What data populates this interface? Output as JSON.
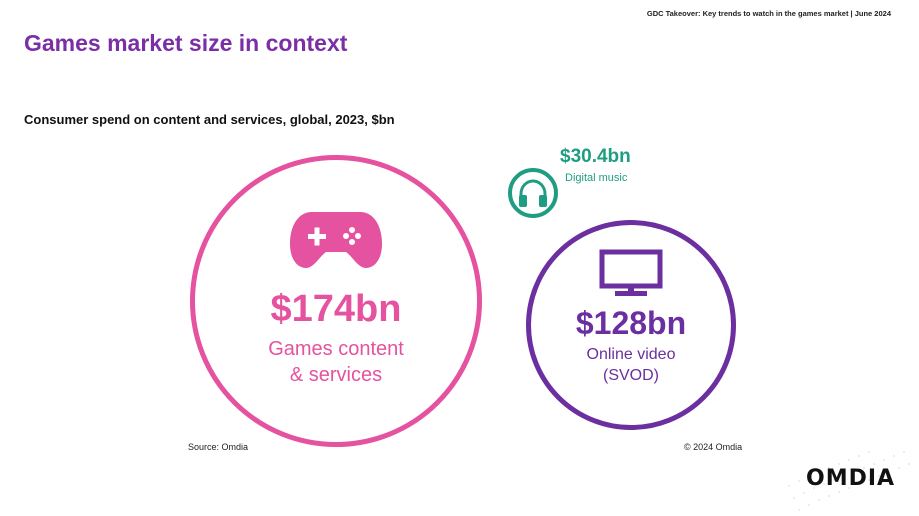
{
  "header_note": "GDC Takeover: Key trends to watch in the games market | June 2024",
  "title": "Games market size in context",
  "subtitle": "Consumer spend on content and services, global, 2023, $bn",
  "source": "Source: Omdia",
  "copyright": "© 2024 Omdia",
  "logo": "OMDIA",
  "colors": {
    "games": "#e5529f",
    "video": "#6b2fa0",
    "music": "#1f9d82",
    "title": "#7b2fa6"
  },
  "chart_data": {
    "type": "bubble",
    "title": "Consumer spend on content and services, global, 2023, $bn",
    "unit": "$bn",
    "items": [
      {
        "category": "Games content & services",
        "value": 174,
        "value_label": "$174bn",
        "label": "Games content\n& services",
        "icon": "gamepad-icon"
      },
      {
        "category": "Online video (SVOD)",
        "value": 128,
        "value_label": "$128bn",
        "label": "Online video\n(SVOD)",
        "icon": "tv-icon"
      },
      {
        "category": "Digital music",
        "value": 30.4,
        "value_label": "$30.4bn",
        "label": "Digital music",
        "icon": "headphones-icon"
      }
    ]
  }
}
